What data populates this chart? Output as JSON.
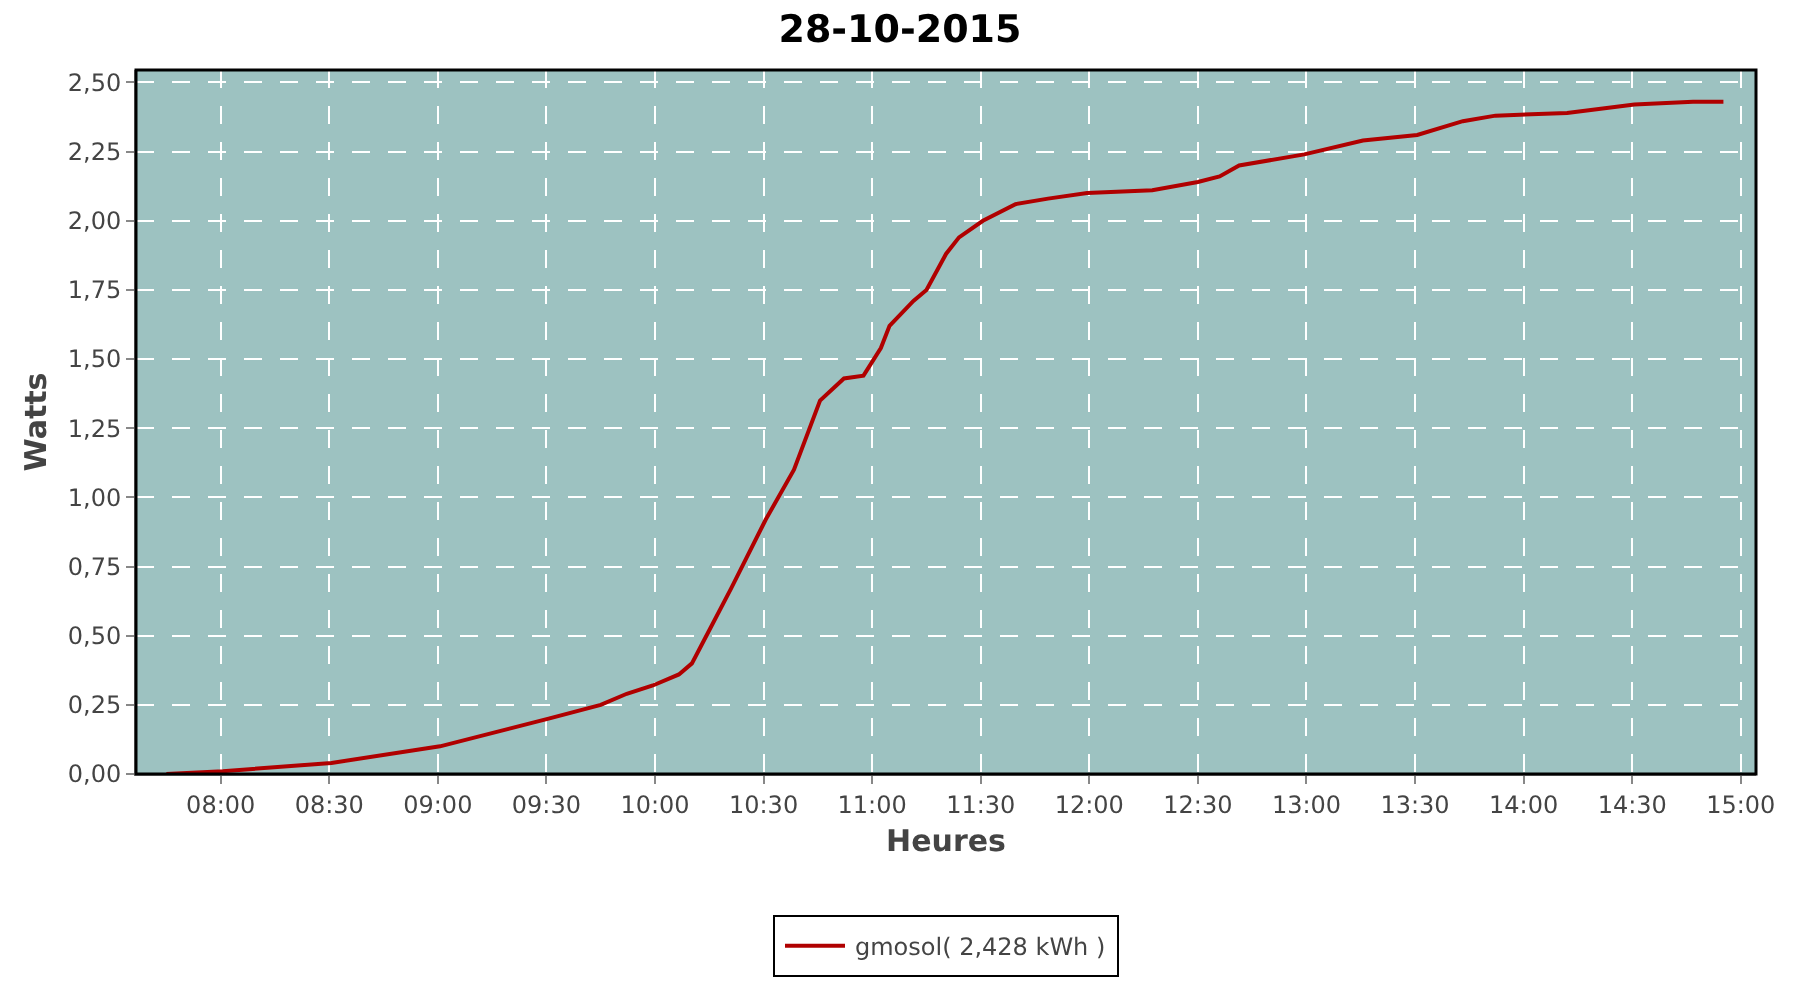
{
  "chart_data": {
    "type": "line",
    "title": "28-10-2015",
    "xlabel": "Heures",
    "ylabel": "Watts",
    "xlim": [
      7.61,
      15.07
    ],
    "ylim": [
      0,
      2.545
    ],
    "xticks": [
      {
        "value": 8,
        "label": "08:00"
      },
      {
        "value": 8.5,
        "label": "08:30"
      },
      {
        "value": 9,
        "label": "09:00"
      },
      {
        "value": 9.5,
        "label": "09:30"
      },
      {
        "value": 10,
        "label": "10:00"
      },
      {
        "value": 10.5,
        "label": "10:30"
      },
      {
        "value": 11,
        "label": "11:00"
      },
      {
        "value": 11.5,
        "label": "11:30"
      },
      {
        "value": 12,
        "label": "12:00"
      },
      {
        "value": 12.5,
        "label": "12:30"
      },
      {
        "value": 13,
        "label": "13:00"
      },
      {
        "value": 13.5,
        "label": "13:30"
      },
      {
        "value": 14,
        "label": "14:00"
      },
      {
        "value": 14.5,
        "label": "14:30"
      },
      {
        "value": 15,
        "label": "15:00"
      }
    ],
    "yticks": [
      {
        "value": 0,
        "label": "0,00"
      },
      {
        "value": 0.25,
        "label": "0,25"
      },
      {
        "value": 0.5,
        "label": "0,50"
      },
      {
        "value": 0.75,
        "label": "0,75"
      },
      {
        "value": 1,
        "label": "1,00"
      },
      {
        "value": 1.25,
        "label": "1,25"
      },
      {
        "value": 1.5,
        "label": "1,50"
      },
      {
        "value": 1.75,
        "label": "1,75"
      },
      {
        "value": 2,
        "label": "2,00"
      },
      {
        "value": 2.25,
        "label": "2,25"
      },
      {
        "value": 2.5,
        "label": "2,50"
      }
    ],
    "grid": true,
    "legend": "bottom",
    "marker": "none",
    "line_style": "solid",
    "series": [
      {
        "name": "gmosol( 2,428 kWh )",
        "color": "#b00000",
        "x": [
          7.75,
          8.01,
          8.51,
          9.01,
          9.51,
          9.75,
          9.87,
          9.99,
          10.11,
          10.17,
          10.23,
          10.35,
          10.51,
          10.64,
          10.76,
          10.87,
          10.96,
          11.04,
          11.08,
          11.19,
          11.25,
          11.34,
          11.4,
          11.51,
          11.66,
          11.81,
          11.99,
          12.29,
          12.5,
          12.6,
          12.69,
          12.99,
          13.26,
          13.51,
          13.72,
          13.87,
          14.2,
          14.51,
          14.78,
          14.92
        ],
        "values": [
          0,
          0.01,
          0.04,
          0.1,
          0.2,
          0.25,
          0.29,
          0.32,
          0.36,
          0.4,
          0.49,
          0.67,
          0.92,
          1.1,
          1.35,
          1.43,
          1.44,
          1.54,
          1.62,
          1.71,
          1.75,
          1.88,
          1.94,
          2.0,
          2.06,
          2.08,
          2.1,
          2.11,
          2.14,
          2.16,
          2.2,
          2.24,
          2.29,
          2.31,
          2.36,
          2.38,
          2.39,
          2.42,
          2.43,
          2.43
        ]
      }
    ]
  }
}
